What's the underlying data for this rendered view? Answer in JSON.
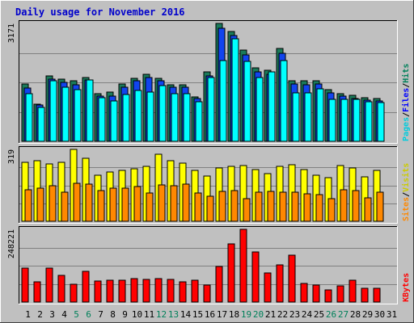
{
  "chart_data": {
    "type": "bar",
    "title": "Daily usage for November 2016",
    "days": [
      "1",
      "2",
      "3",
      "4",
      "5",
      "6",
      "7",
      "8",
      "9",
      "10",
      "11",
      "12",
      "13",
      "14",
      "15",
      "16",
      "17",
      "18",
      "19",
      "20",
      "21",
      "22",
      "23",
      "24",
      "25",
      "26",
      "27",
      "28",
      "29",
      "30",
      "31"
    ],
    "weekend_days": [
      "5",
      "6",
      "12",
      "13",
      "19",
      "20",
      "26",
      "27"
    ],
    "colors": {
      "hits": "#00ccdd",
      "files": "#1144ee",
      "pages": "#00ffff",
      "visits": "#ffff00",
      "sites": "#ff8800",
      "kbytes": "#ff0000",
      "hits_bar": "#1a7a5a",
      "weekday_label": "#000000",
      "weekend_label": "#00805a"
    },
    "panels": [
      {
        "id": "hits-files-pages",
        "ymax_label": "3171",
        "ymax": 3171,
        "legend": [
          {
            "text": "Hits",
            "color": "#00805a"
          },
          {
            "text": "Files",
            "color": "#0000ff"
          },
          {
            "text": "Pages",
            "color": "#00ccdd"
          }
        ],
        "legend_separator": "/",
        "series": [
          {
            "name": "Hits",
            "key": "hits",
            "values": [
              1550,
              1000,
              1760,
              1680,
              1620,
              1710,
              1280,
              1320,
              1540,
              1700,
              1800,
              1700,
              1530,
              1510,
              1190,
              1860,
              3171,
              2960,
              2460,
              1980,
              1920,
              2490,
              1630,
              1620,
              1630,
              1390,
              1280,
              1230,
              1180,
              1155,
              null
            ]
          },
          {
            "name": "Files",
            "key": "files",
            "values": [
              1430,
              980,
              1680,
              1590,
              1520,
              1640,
              1210,
              1220,
              1450,
              1620,
              1720,
              1630,
              1460,
              1450,
              1150,
              1750,
              3050,
              2840,
              2320,
              1860,
              1800,
              2360,
              1550,
              1510,
              1540,
              1310,
              1210,
              1160,
              1110,
              1090,
              null
            ]
          },
          {
            "name": "Pages",
            "key": "pages",
            "values": [
              1290,
              920,
              1630,
              1460,
              1380,
              1640,
              1170,
              1080,
              1260,
              1360,
              1330,
              1490,
              1290,
              1290,
              1060,
              1720,
              2180,
              2750,
              2150,
              1720,
              1870,
              2180,
              1310,
              1310,
              1410,
              1140,
              1130,
              1140,
              1060,
              1050,
              null
            ]
          }
        ]
      },
      {
        "id": "visits-sites",
        "ymax_label": "319",
        "ymax": 319,
        "legend": [
          {
            "text": "Visits",
            "color": "#cccc00"
          },
          {
            "text": "Sites",
            "color": "#ff8800"
          }
        ],
        "legend_separator": "/",
        "series": [
          {
            "name": "Visits",
            "key": "visits",
            "values": [
              262,
              270,
              253,
              263,
              319,
              281,
              204,
              218,
              226,
              233,
              243,
              299,
              270,
              258,
              226,
              201,
              238,
              244,
              248,
              231,
              213,
              243,
              250,
              230,
              206,
              193,
              246,
              236,
              196,
              226,
              null
            ]
          },
          {
            "name": "Sites",
            "key": "sites",
            "values": [
              141,
              148,
              159,
              130,
              167,
              166,
              137,
              146,
              146,
              154,
              127,
              160,
              156,
              164,
              126,
              111,
              134,
              137,
              101,
              130,
              132,
              129,
              129,
              123,
              117,
              102,
              139,
              136,
              105,
              130,
              null
            ]
          }
        ]
      },
      {
        "id": "kbytes",
        "ymax_label": "248221",
        "ymax": 248221,
        "legend": [
          {
            "text": "KBytes",
            "color": "#ff0000"
          }
        ],
        "legend_separator": "",
        "series": [
          {
            "name": "KBytes",
            "key": "kbytes",
            "values": [
              115000,
              70000,
              115000,
              90000,
              60000,
              105000,
              72000,
              74000,
              74000,
              80000,
              78000,
              80000,
              78000,
              70000,
              75000,
              58000,
              120000,
              198000,
              248221,
              172000,
              98000,
              126000,
              160000,
              64000,
              58000,
              40000,
              54000,
              74000,
              46000,
              46000,
              null
            ]
          }
        ]
      }
    ]
  }
}
